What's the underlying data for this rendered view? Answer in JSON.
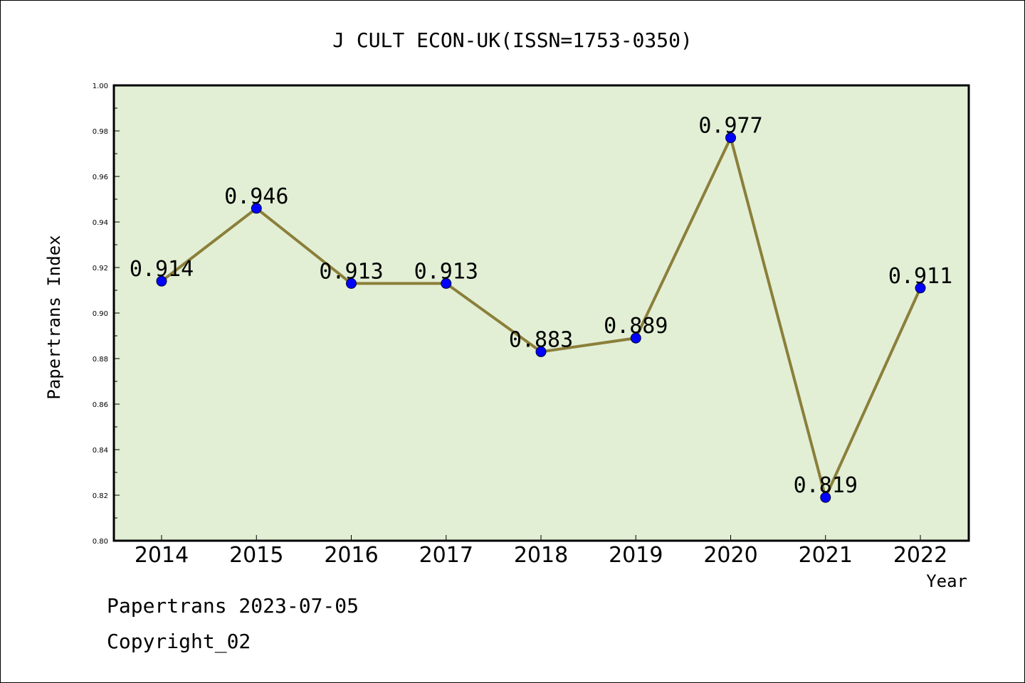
{
  "chart_data": {
    "type": "line",
    "title": "J CULT ECON-UK(ISSN=1753-0350)",
    "xlabel": "Year",
    "ylabel": "Papertrans Index",
    "categories": [
      "2014",
      "2015",
      "2016",
      "2017",
      "2018",
      "2019",
      "2020",
      "2021",
      "2022"
    ],
    "values": [
      0.914,
      0.946,
      0.913,
      0.913,
      0.883,
      0.889,
      0.977,
      0.819,
      0.911
    ],
    "data_labels": [
      "0.914",
      "0.946",
      "0.913",
      "0.913",
      "0.883",
      "0.889",
      "0.977",
      "0.819",
      "0.911"
    ],
    "ylim": [
      0.8,
      1.0
    ],
    "yticks": [
      "0.80",
      "0.82",
      "0.84",
      "0.86",
      "0.88",
      "0.90",
      "0.92",
      "0.94",
      "0.96",
      "0.98",
      "1.00"
    ],
    "grid": false,
    "legend": "none",
    "colors": {
      "plot_background": "#e2efd5",
      "line": "#8b7f3a",
      "marker": "#0000ff",
      "axis": "#000000"
    }
  },
  "footer": {
    "line1": "Papertrans 2023-07-05",
    "line2": "Copyright_02"
  }
}
